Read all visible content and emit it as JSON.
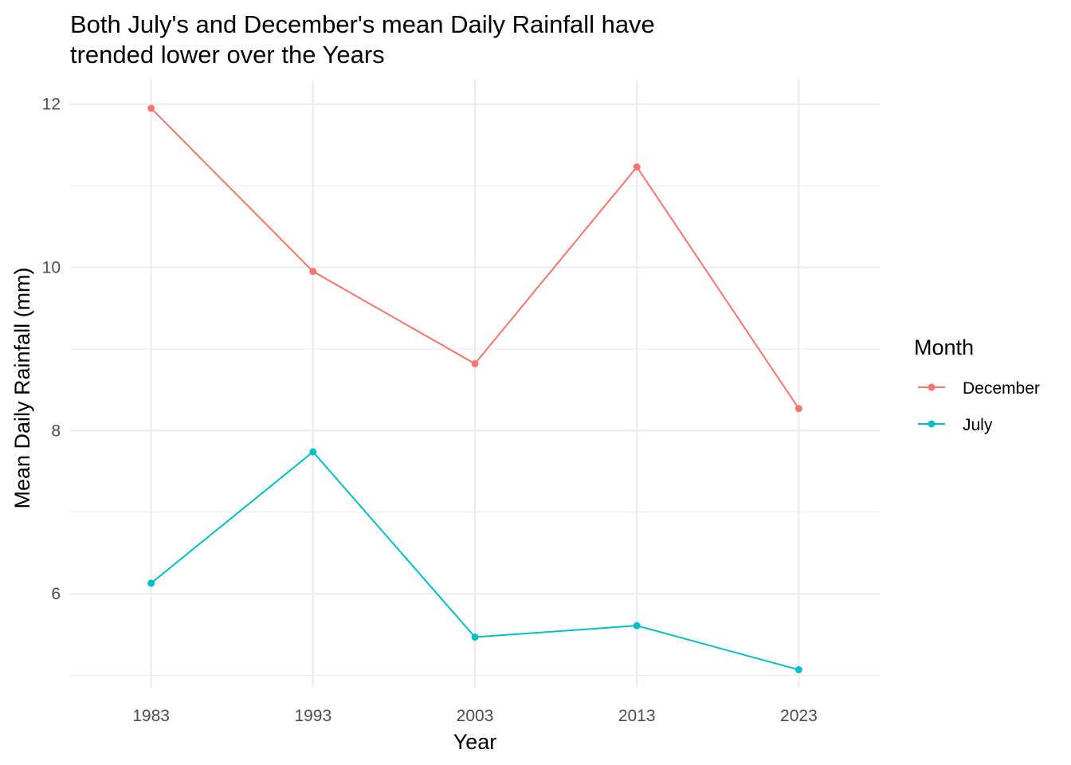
{
  "chart_data": {
    "type": "line",
    "title_lines": [
      "Both July's and December's mean Daily Rainfall have",
      "trended lower over the Years"
    ],
    "xlabel": "Year",
    "ylabel": "Mean Daily Rainfall (mm)",
    "x": [
      1983,
      1993,
      2003,
      2013,
      2023
    ],
    "x_tick_labels": [
      "1983",
      "1993",
      "2003",
      "2013",
      "2023"
    ],
    "y_ticks": [
      6,
      8,
      10,
      12
    ],
    "y_tick_labels": [
      "6",
      "8",
      "10",
      "12"
    ],
    "xlim": [
      1978,
      2028
    ],
    "ylim": [
      4.85,
      12.3
    ],
    "grid": true,
    "legend": {
      "title": "Month",
      "position": "right"
    },
    "series": [
      {
        "name": "December",
        "color": "#F8766D",
        "values": [
          11.95,
          9.95,
          8.82,
          11.23,
          8.27
        ]
      },
      {
        "name": "July",
        "color": "#00BFC4",
        "values": [
          6.13,
          7.74,
          5.47,
          5.61,
          5.07
        ]
      }
    ]
  }
}
